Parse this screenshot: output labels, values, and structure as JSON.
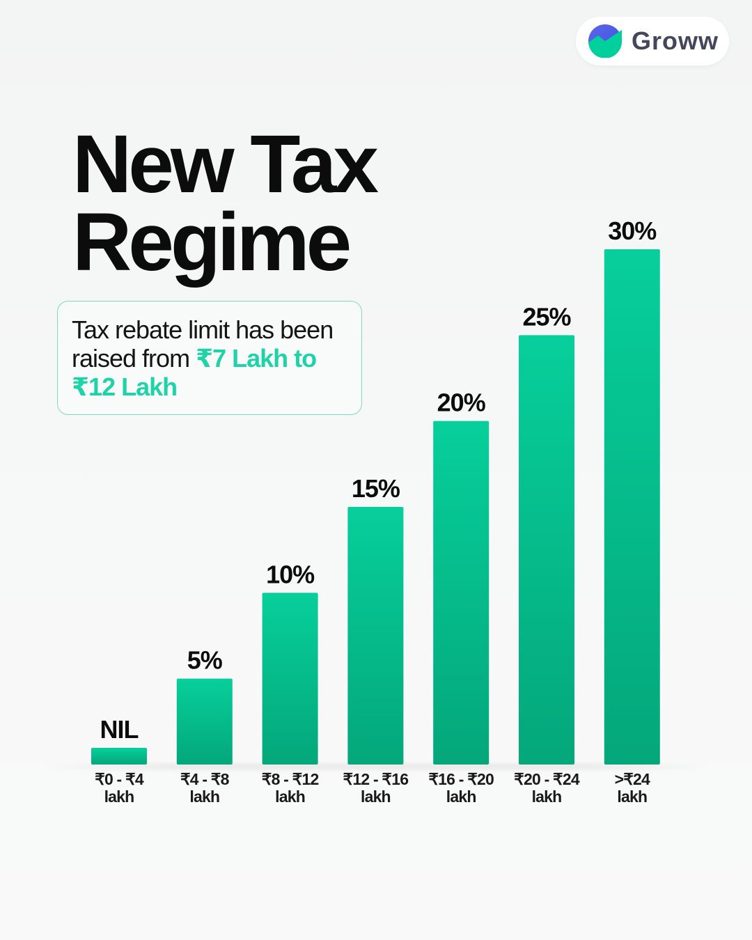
{
  "brand": {
    "name": "Groww",
    "logo_icon": "groww-logo-icon"
  },
  "heading": {
    "line1": "New Tax",
    "line2": "Regime"
  },
  "rebate": {
    "prefix": "Tax rebate limit has been raised from ",
    "highlight": "₹7 Lakh to ₹12 Lakh"
  },
  "colors": {
    "bar_top": "#07cf9b",
    "bar_bottom": "#04a77a",
    "highlight": "#1dd3a7",
    "text": "#0c0c0c"
  },
  "chart_data": {
    "type": "bar",
    "title": "",
    "xlabel": "",
    "ylabel": "",
    "ylim": [
      0,
      30
    ],
    "grid": false,
    "legend": "none",
    "categories": [
      [
        "₹0 - ₹4",
        "lakh"
      ],
      [
        "₹4 - ₹8",
        "lakh"
      ],
      [
        "₹8 - ₹12",
        "lakh"
      ],
      [
        "₹12 - ₹16",
        "lakh"
      ],
      [
        "₹16 - ₹20",
        "lakh"
      ],
      [
        "₹20 - ₹24",
        "lakh"
      ],
      [
        ">₹24",
        "lakh"
      ]
    ],
    "values": [
      0,
      5,
      10,
      15,
      20,
      25,
      30
    ],
    "value_labels": [
      "NIL",
      "5%",
      "10%",
      "15%",
      "20%",
      "25%",
      "30%"
    ]
  }
}
